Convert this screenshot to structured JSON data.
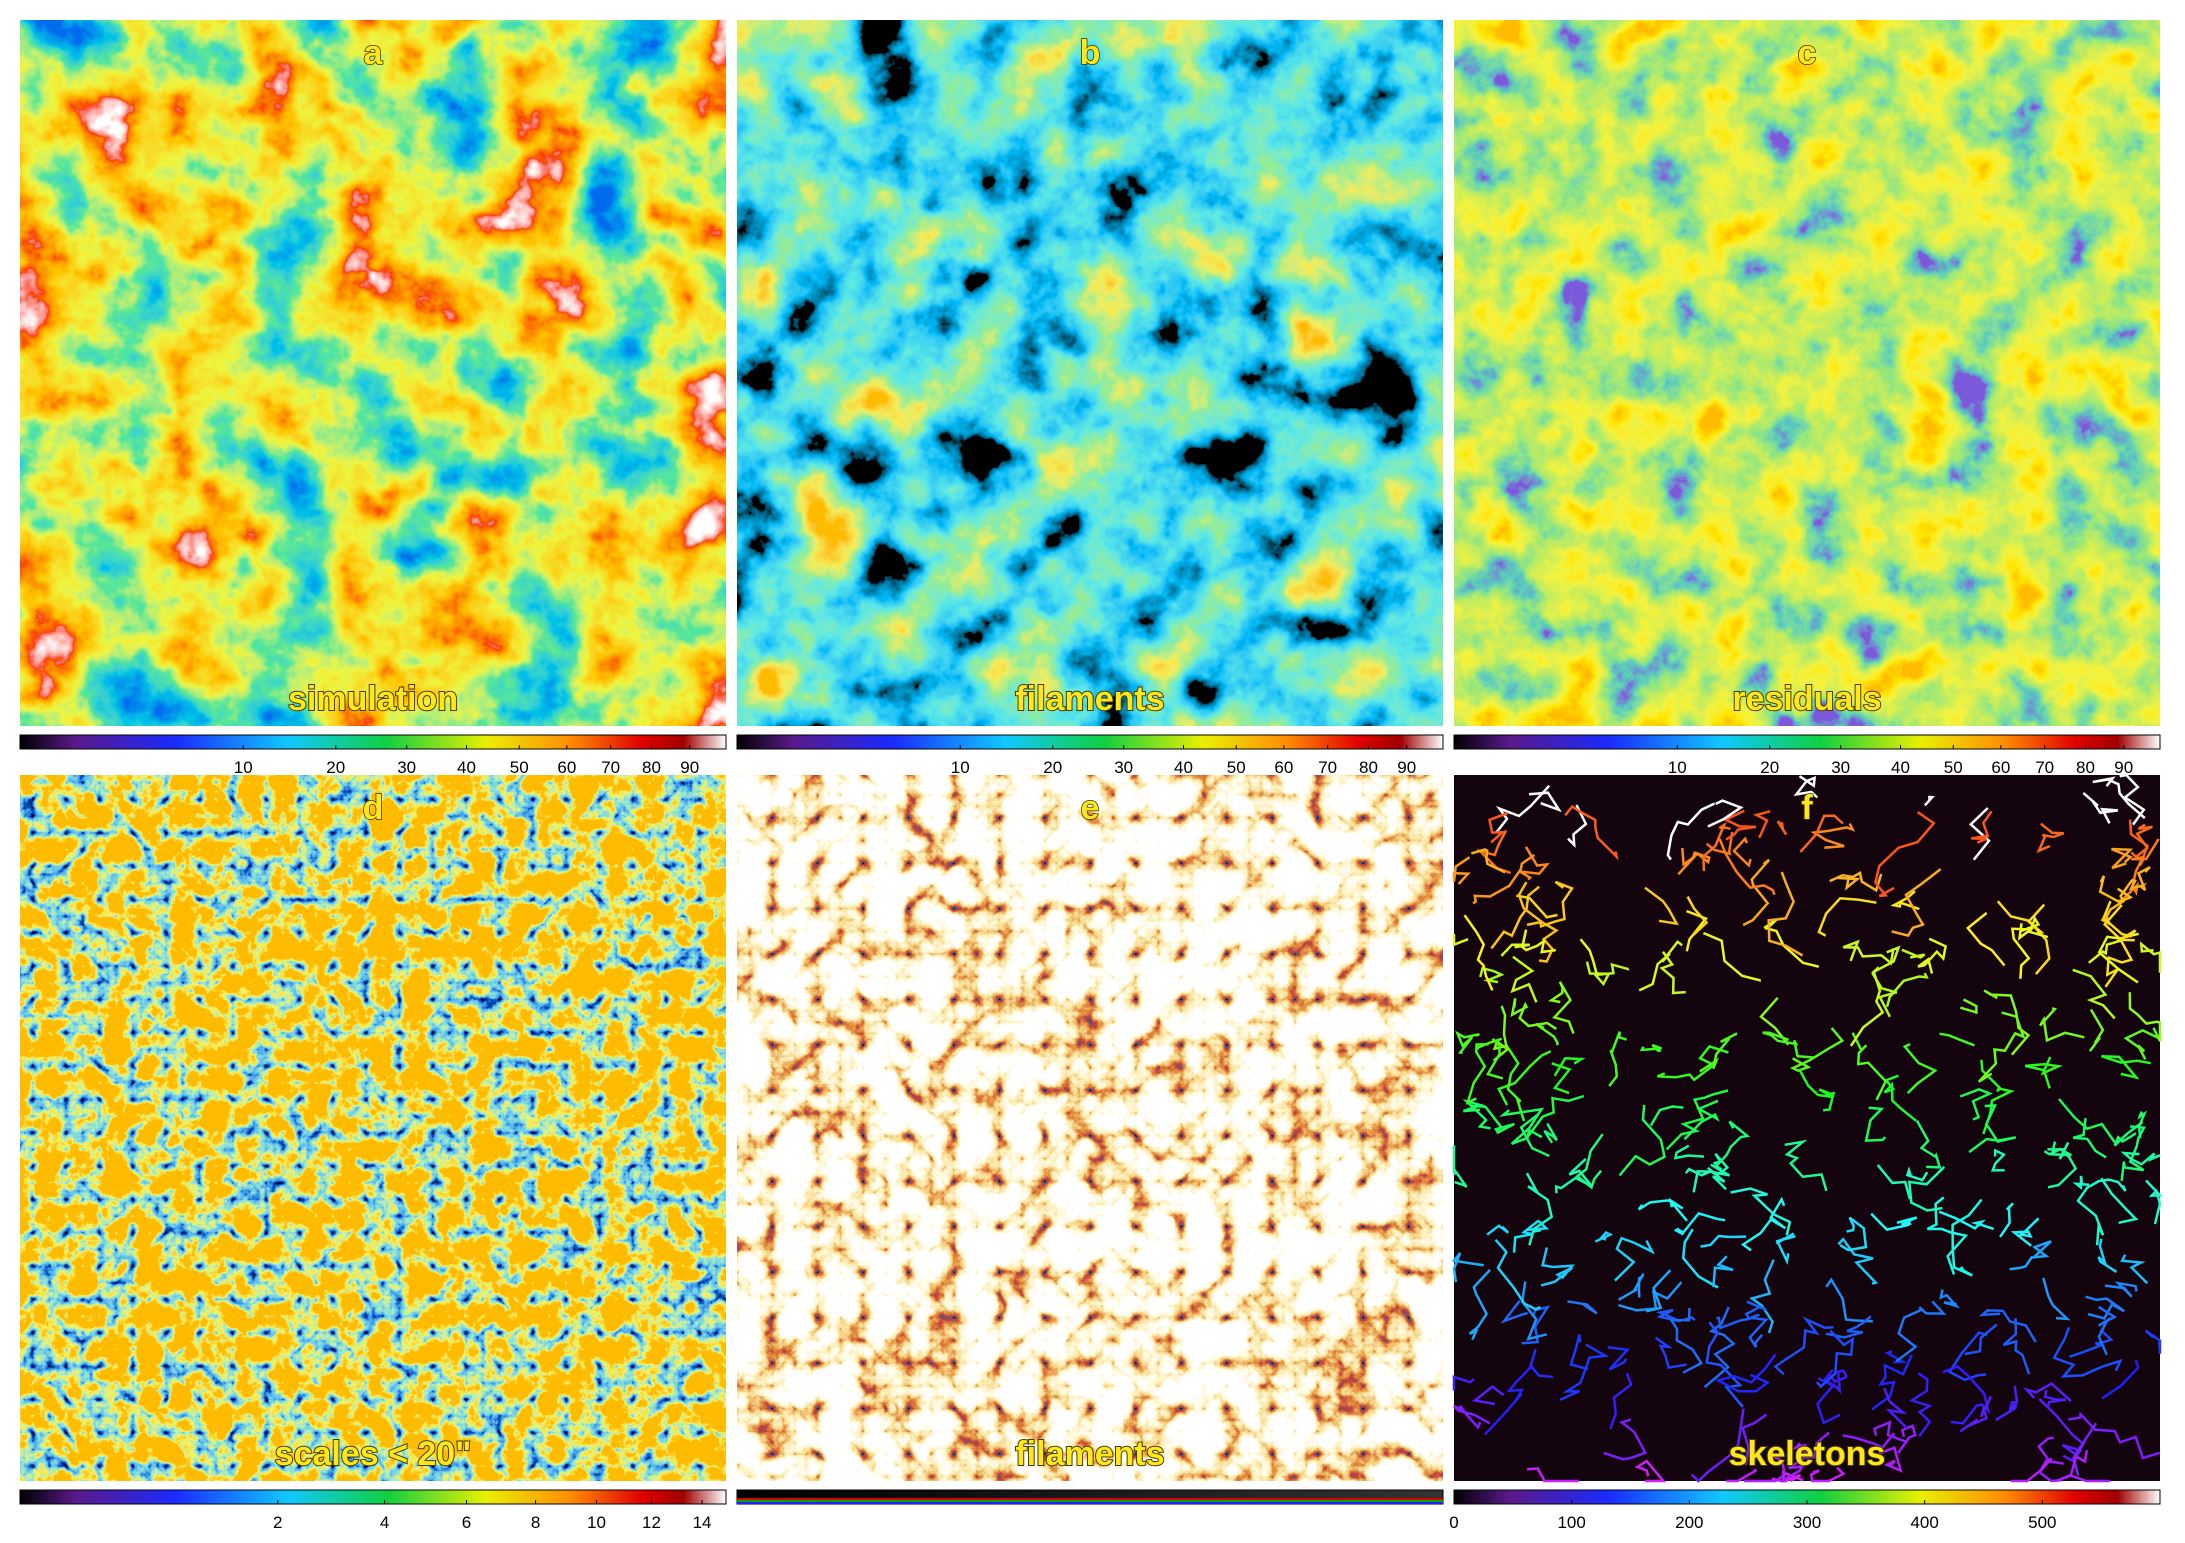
{
  "panels": [
    {
      "label": "a",
      "caption": "simulation",
      "colorbar": {
        "colormap": "rainbow",
        "scale": "sqrt",
        "lim": [
          0,
          100
        ],
        "ticks": [
          10,
          20,
          30,
          40,
          50,
          60,
          70,
          80,
          90
        ]
      }
    },
    {
      "label": "b",
      "caption": "filaments",
      "colorbar": {
        "colormap": "rainbow",
        "scale": "sqrt",
        "lim": [
          0,
          100
        ],
        "ticks": [
          10,
          20,
          30,
          40,
          50,
          60,
          70,
          80,
          90
        ]
      }
    },
    {
      "label": "c",
      "caption": "residuals",
      "colorbar": {
        "colormap": "rainbow",
        "scale": "sqrt",
        "lim": [
          0,
          100
        ],
        "ticks": [
          10,
          20,
          30,
          40,
          50,
          60,
          70,
          80,
          90
        ]
      }
    },
    {
      "label": "d",
      "caption": "scales < 20\"",
      "colorbar": {
        "colormap": "rainbow",
        "scale": "sqrt",
        "lim": [
          0,
          15
        ],
        "ticks": [
          2,
          4,
          6,
          8,
          10,
          12,
          14
        ]
      }
    },
    {
      "label": "e",
      "caption": "filaments",
      "colorbar": {
        "colormap": "gray-rgb"
      }
    },
    {
      "label": "f",
      "caption": "skeletons",
      "colorbar": {
        "colormap": "rainbow",
        "scale": "linear",
        "lim": [
          0,
          600
        ],
        "ticks": [
          0,
          100,
          200,
          300,
          400,
          500
        ]
      }
    }
  ]
}
